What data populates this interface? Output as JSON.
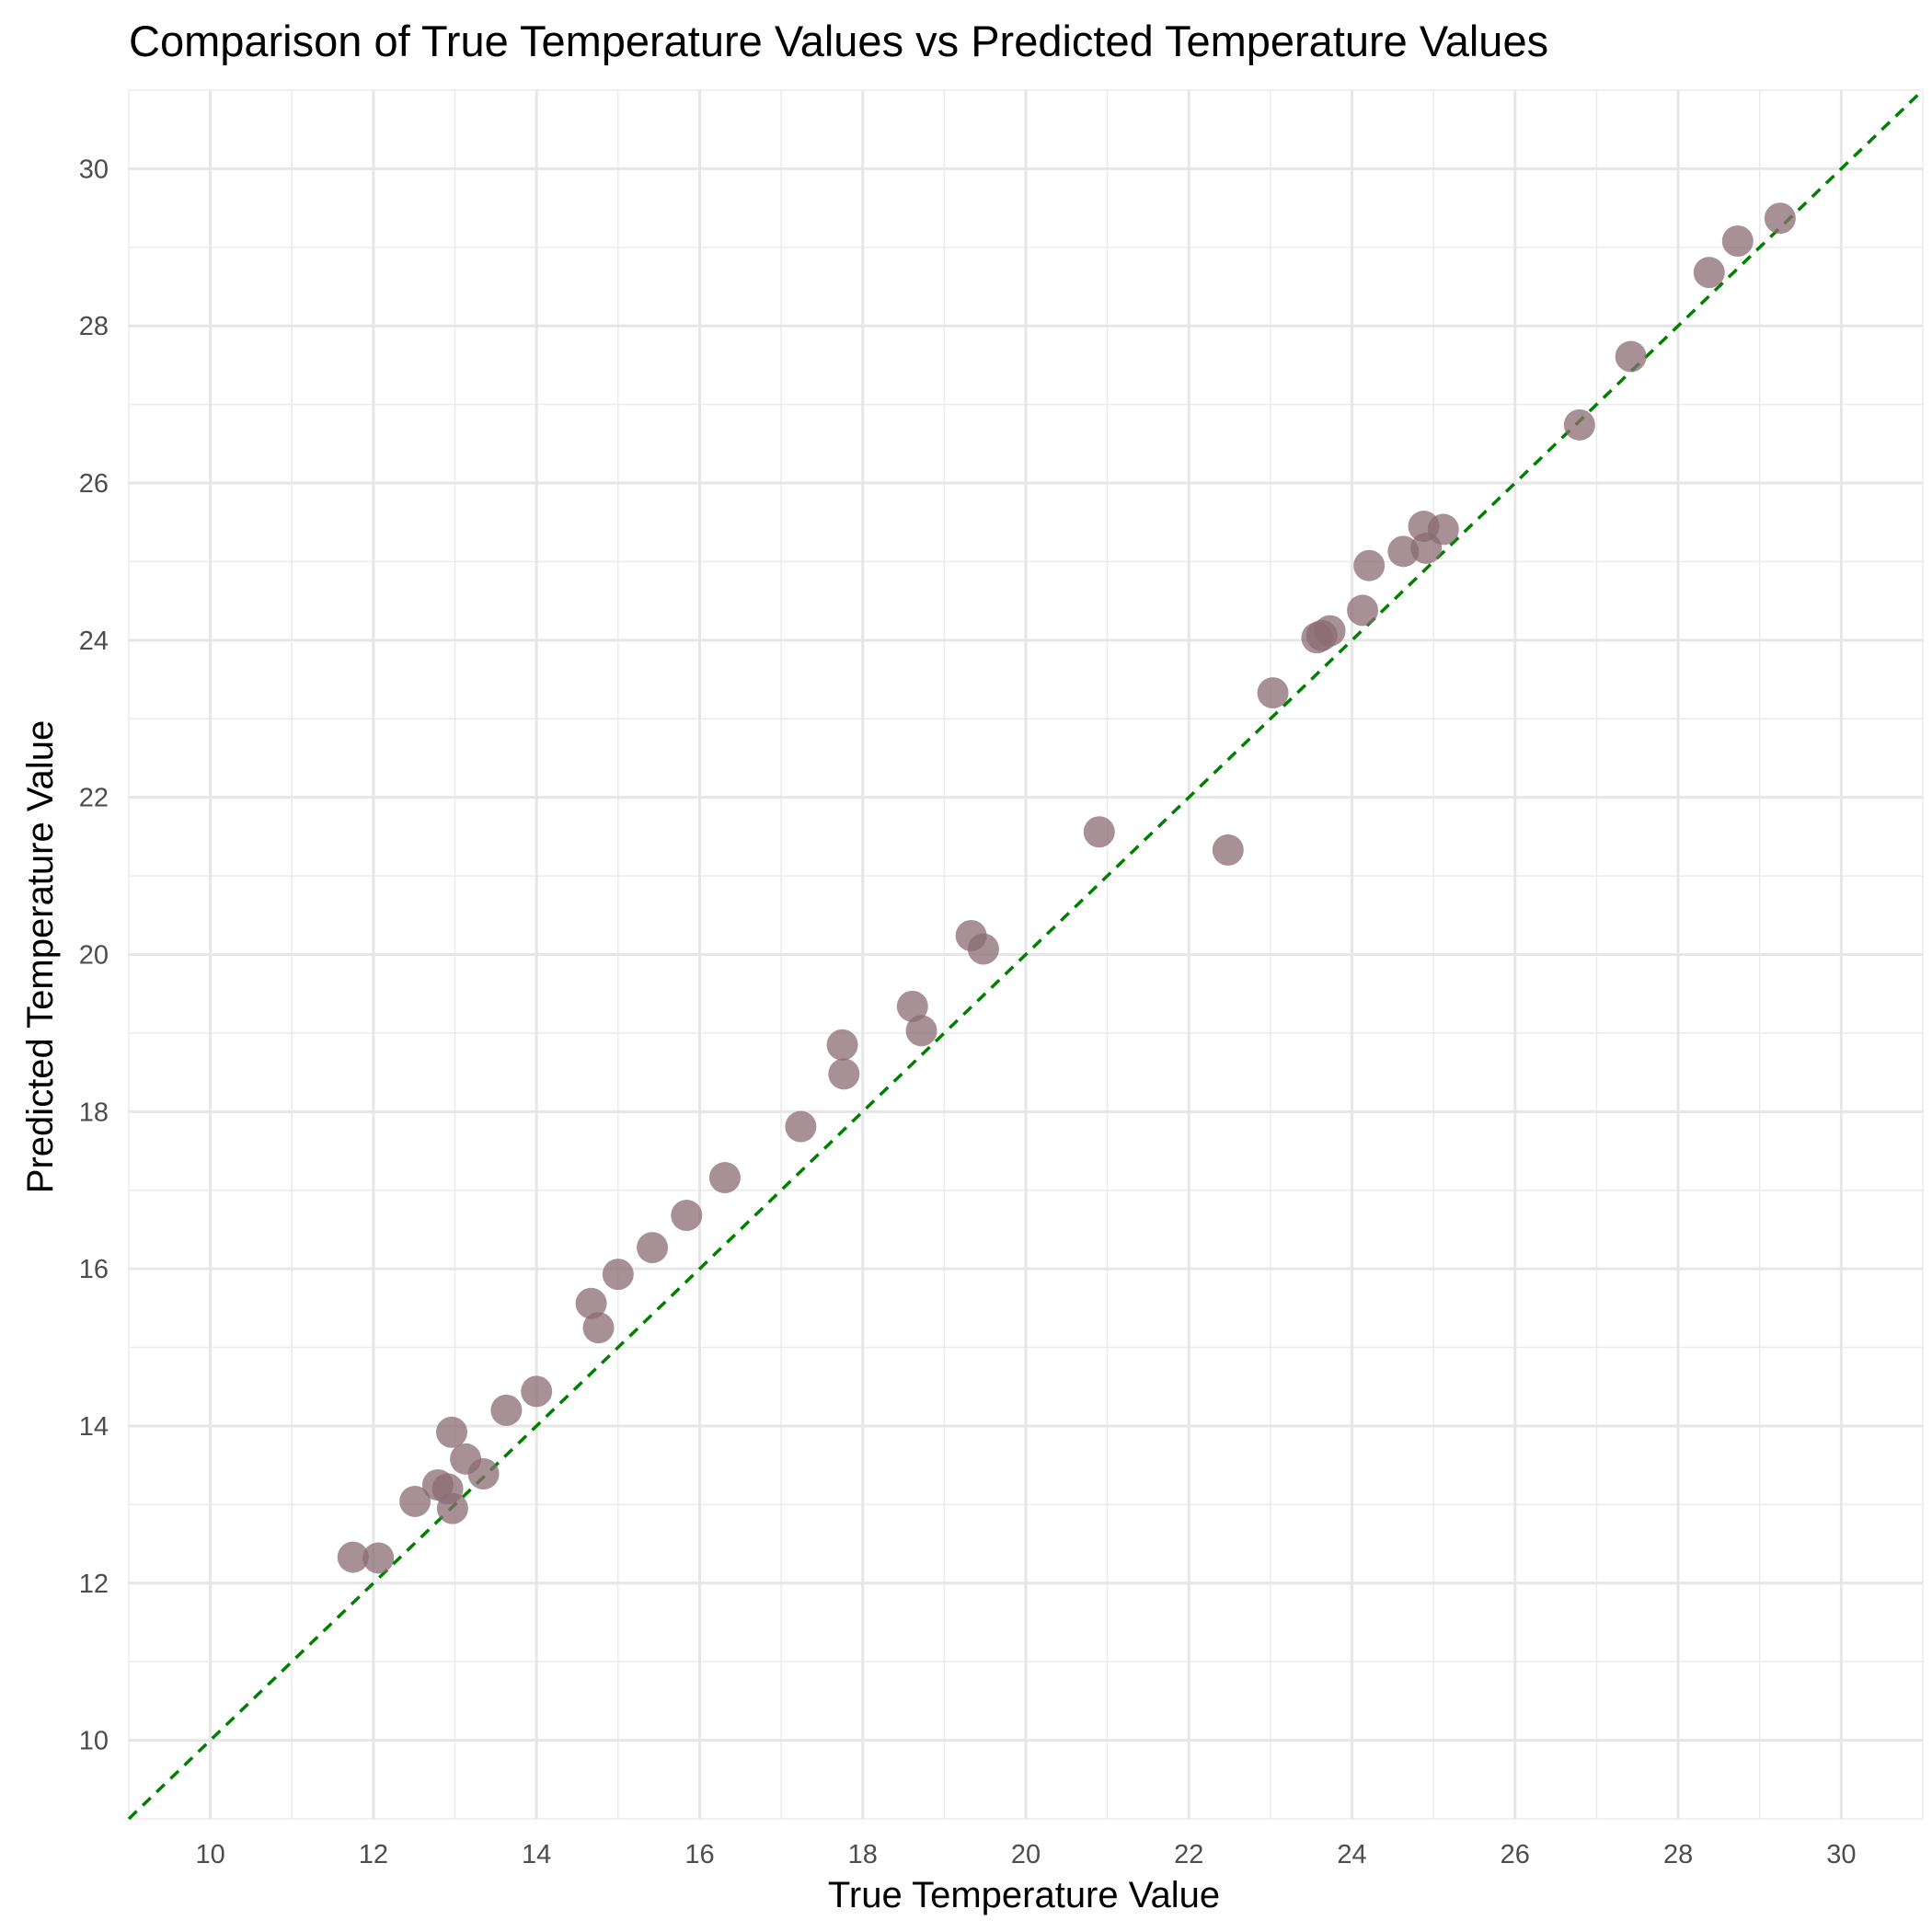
{
  "chart_data": {
    "type": "scatter",
    "title": "Comparison of True Temperature Values vs Predicted Temperature Values",
    "xlabel": "True Temperature Value",
    "ylabel": "Predicted Temperature Value",
    "xlim": [
      9,
      31
    ],
    "ylim": [
      9,
      31
    ],
    "x_ticks": [
      "10",
      "12",
      "14",
      "16",
      "18",
      "20",
      "22",
      "24",
      "26",
      "28",
      "30"
    ],
    "y_ticks": [
      "10",
      "12",
      "14",
      "16",
      "18",
      "20",
      "22",
      "24",
      "26",
      "28",
      "30"
    ],
    "grid": true,
    "legend": "none",
    "point_color": "#8b6b74",
    "reference_line": {
      "type": "y = x",
      "style": "dashed",
      "color": "#008000"
    },
    "points": [
      {
        "x": 11.75,
        "y": 12.33
      },
      {
        "x": 12.06,
        "y": 12.32
      },
      {
        "x": 12.51,
        "y": 13.04
      },
      {
        "x": 12.79,
        "y": 13.25
      },
      {
        "x": 12.91,
        "y": 13.2
      },
      {
        "x": 12.97,
        "y": 12.95
      },
      {
        "x": 12.96,
        "y": 13.92
      },
      {
        "x": 13.13,
        "y": 13.58
      },
      {
        "x": 13.35,
        "y": 13.39
      },
      {
        "x": 13.63,
        "y": 14.2
      },
      {
        "x": 14.0,
        "y": 14.44
      },
      {
        "x": 14.67,
        "y": 15.56
      },
      {
        "x": 14.76,
        "y": 15.25
      },
      {
        "x": 15.0,
        "y": 15.93
      },
      {
        "x": 15.42,
        "y": 16.27
      },
      {
        "x": 15.84,
        "y": 16.68
      },
      {
        "x": 16.31,
        "y": 17.16
      },
      {
        "x": 17.24,
        "y": 17.81
      },
      {
        "x": 17.75,
        "y": 18.85
      },
      {
        "x": 17.77,
        "y": 18.48
      },
      {
        "x": 18.61,
        "y": 19.34
      },
      {
        "x": 18.72,
        "y": 19.03
      },
      {
        "x": 19.33,
        "y": 20.24
      },
      {
        "x": 19.48,
        "y": 20.07
      },
      {
        "x": 20.9,
        "y": 21.56
      },
      {
        "x": 22.48,
        "y": 21.33
      },
      {
        "x": 23.03,
        "y": 23.33
      },
      {
        "x": 23.57,
        "y": 24.03
      },
      {
        "x": 23.63,
        "y": 24.06
      },
      {
        "x": 23.73,
        "y": 24.12
      },
      {
        "x": 24.13,
        "y": 24.38
      },
      {
        "x": 24.21,
        "y": 24.95
      },
      {
        "x": 24.63,
        "y": 25.13
      },
      {
        "x": 24.88,
        "y": 25.45
      },
      {
        "x": 24.91,
        "y": 25.17
      },
      {
        "x": 25.12,
        "y": 25.41
      },
      {
        "x": 26.79,
        "y": 26.74
      },
      {
        "x": 27.42,
        "y": 27.61
      },
      {
        "x": 28.38,
        "y": 28.68
      },
      {
        "x": 28.73,
        "y": 29.08
      },
      {
        "x": 29.25,
        "y": 29.37
      }
    ]
  }
}
